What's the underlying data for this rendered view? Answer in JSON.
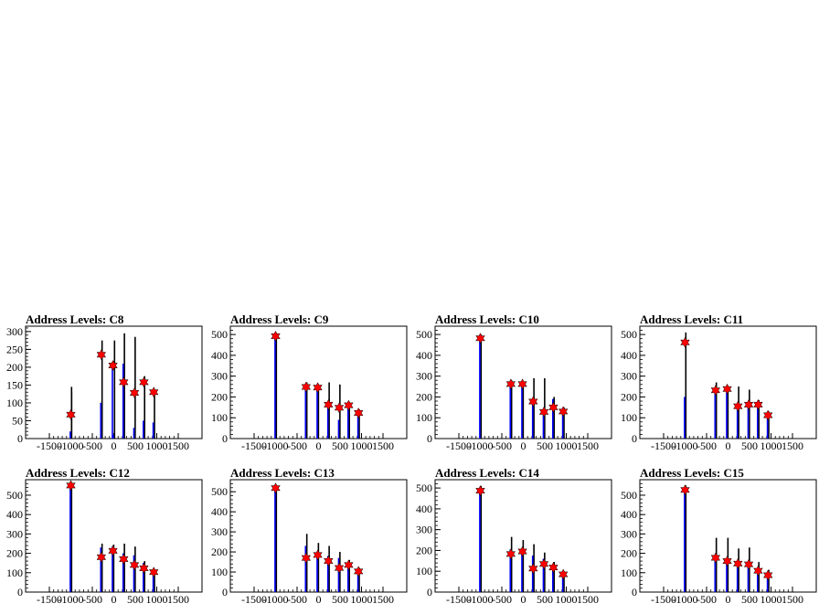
{
  "chart_data": [
    {
      "type": "histogram",
      "title": "Address Levels: C8",
      "xlim": [
        -1500,
        1500
      ],
      "ylim": [
        0,
        315
      ],
      "xticks": [
        -1500,
        -1000,
        -500,
        0,
        500,
        1000,
        1500
      ],
      "yticks": [
        0,
        50,
        100,
        150,
        200,
        250,
        300
      ],
      "series": [
        {
          "color": "#000000",
          "x": [
            -1000,
            -1000,
            -290,
            -290,
            0,
            230,
            480,
            700,
            930
          ],
          "values": [
            145,
            130,
            275,
            105,
            275,
            295,
            285,
            175,
            135
          ]
        },
        {
          "color": "#0000ff",
          "x": [
            -1000,
            -290,
            -20,
            0,
            230,
            480,
            700,
            930
          ],
          "values": [
            20,
            100,
            200,
            10,
            210,
            30,
            50,
            45
          ]
        }
      ],
      "peaks": {
        "x": [
          -1000,
          -290,
          -20,
          230,
          480,
          700,
          930
        ],
        "values": [
          67,
          235,
          205,
          158,
          128,
          158,
          130
        ]
      }
    },
    {
      "type": "histogram",
      "title": "Address Levels: C9",
      "xlim": [
        -1500,
        1500
      ],
      "ylim": [
        0,
        540
      ],
      "xticks": [
        -1500,
        -1000,
        -500,
        0,
        500,
        1000,
        1500
      ],
      "yticks": [
        0,
        100,
        200,
        300,
        400,
        500
      ],
      "series": [
        {
          "color": "#000000",
          "x": [
            -1000,
            -290,
            -20,
            230,
            480,
            700,
            930
          ],
          "values": [
            500,
            270,
            260,
            270,
            260,
            175,
            140
          ]
        },
        {
          "color": "#0000ff",
          "x": [
            -1000,
            -290,
            -20,
            230,
            480,
            700,
            930
          ],
          "values": [
            495,
            250,
            250,
            160,
            90,
            150,
            120
          ]
        }
      ],
      "peaks": {
        "x": [
          -1000,
          -290,
          -20,
          230,
          480,
          700,
          930
        ],
        "values": [
          492,
          248,
          245,
          163,
          148,
          160,
          123
        ]
      }
    },
    {
      "type": "histogram",
      "title": "Address Levels: C10",
      "xlim": [
        -1500,
        1500
      ],
      "ylim": [
        0,
        540
      ],
      "xticks": [
        -1500,
        -1000,
        -500,
        0,
        500,
        1000,
        1500
      ],
      "yticks": [
        0,
        100,
        200,
        300,
        400,
        500
      ],
      "series": [
        {
          "color": "#000000",
          "x": [
            -1000,
            -290,
            -20,
            230,
            480,
            700,
            930
          ],
          "values": [
            500,
            280,
            270,
            290,
            290,
            200,
            150
          ]
        },
        {
          "color": "#0000ff",
          "x": [
            -1000,
            -290,
            -20,
            230,
            480,
            700,
            930
          ],
          "values": [
            485,
            260,
            260,
            190,
            130,
            190,
            135
          ]
        }
      ],
      "peaks": {
        "x": [
          -1000,
          -290,
          -20,
          230,
          480,
          700,
          930
        ],
        "values": [
          482,
          262,
          262,
          178,
          128,
          150,
          130
        ]
      }
    },
    {
      "type": "histogram",
      "title": "Address Levels: C11",
      "xlim": [
        -1500,
        1500
      ],
      "ylim": [
        0,
        540
      ],
      "xticks": [
        -1500,
        -1000,
        -500,
        0,
        500,
        1000,
        1500
      ],
      "yticks": [
        0,
        100,
        200,
        300,
        400,
        500
      ],
      "series": [
        {
          "color": "#000000",
          "x": [
            -1000,
            -290,
            -20,
            230,
            480,
            700,
            930
          ],
          "values": [
            510,
            270,
            250,
            250,
            235,
            185,
            130
          ]
        },
        {
          "color": "#0000ff",
          "x": [
            -1000,
            -290,
            -20,
            230,
            480,
            700,
            930
          ],
          "values": [
            200,
            240,
            240,
            170,
            160,
            160,
            110
          ]
        }
      ],
      "peaks": {
        "x": [
          -1000,
          -290,
          -20,
          230,
          480,
          700,
          930
        ],
        "values": [
          462,
          232,
          238,
          155,
          163,
          163,
          112
        ]
      }
    },
    {
      "type": "histogram",
      "title": "Address Levels: C12",
      "xlim": [
        -1500,
        1500
      ],
      "ylim": [
        0,
        580
      ],
      "xticks": [
        -1500,
        -1000,
        -500,
        0,
        500,
        1000,
        1500
      ],
      "yticks": [
        0,
        100,
        200,
        300,
        400,
        500
      ],
      "series": [
        {
          "color": "#000000",
          "x": [
            -1000,
            -290,
            -20,
            230,
            480,
            700,
            930
          ],
          "values": [
            560,
            250,
            245,
            250,
            235,
            160,
            115
          ]
        },
        {
          "color": "#0000ff",
          "x": [
            -1000,
            -290,
            -20,
            230,
            480,
            700,
            930
          ],
          "values": [
            555,
            230,
            235,
            200,
            190,
            150,
            105
          ]
        }
      ],
      "peaks": {
        "x": [
          -1000,
          -290,
          -20,
          230,
          480,
          700,
          930
        ],
        "values": [
          550,
          180,
          213,
          170,
          140,
          123,
          103
        ]
      }
    },
    {
      "type": "histogram",
      "title": "Address Levels: C13",
      "xlim": [
        -1500,
        1500
      ],
      "ylim": [
        0,
        560
      ],
      "xticks": [
        -1500,
        -1000,
        -500,
        0,
        500,
        1000,
        1500
      ],
      "yticks": [
        0,
        100,
        200,
        300,
        400,
        500
      ],
      "series": [
        {
          "color": "#000000",
          "x": [
            -1000,
            -290,
            -20,
            230,
            480,
            700,
            930
          ],
          "values": [
            525,
            290,
            245,
            230,
            200,
            160,
            120
          ]
        },
        {
          "color": "#0000ff",
          "x": [
            -1000,
            -290,
            -20,
            230,
            480,
            700,
            930
          ],
          "values": [
            520,
            230,
            190,
            180,
            170,
            140,
            110
          ]
        }
      ],
      "peaks": {
        "x": [
          -1000,
          -290,
          -20,
          230,
          480,
          700,
          930
        ],
        "values": [
          518,
          170,
          185,
          155,
          120,
          135,
          103
        ]
      }
    },
    {
      "type": "histogram",
      "title": "Address Levels: C14",
      "xlim": [
        -1500,
        1500
      ],
      "ylim": [
        0,
        540
      ],
      "xticks": [
        -1500,
        -1000,
        -500,
        0,
        500,
        1000,
        1500
      ],
      "yticks": [
        0,
        100,
        200,
        300,
        400,
        500
      ],
      "series": [
        {
          "color": "#000000",
          "x": [
            -1000,
            -290,
            -20,
            230,
            480,
            700,
            930
          ],
          "values": [
            510,
            265,
            250,
            230,
            190,
            145,
            100
          ]
        },
        {
          "color": "#0000ff",
          "x": [
            -1000,
            -290,
            -20,
            230,
            480,
            700,
            930
          ],
          "values": [
            500,
            205,
            200,
            175,
            160,
            120,
            95
          ]
        }
      ],
      "peaks": {
        "x": [
          -1000,
          -290,
          -20,
          230,
          480,
          700,
          930
        ],
        "values": [
          487,
          183,
          195,
          113,
          135,
          118,
          85
        ]
      }
    },
    {
      "type": "histogram",
      "title": "Address Levels: C15",
      "xlim": [
        -1500,
        1500
      ],
      "ylim": [
        0,
        580
      ],
      "xticks": [
        -1500,
        -1000,
        -500,
        0,
        500,
        1000,
        1500
      ],
      "yticks": [
        0,
        100,
        200,
        300,
        400,
        500
      ],
      "series": [
        {
          "color": "#000000",
          "x": [
            -1000,
            -290,
            -20,
            230,
            480,
            700,
            930
          ],
          "values": [
            550,
            280,
            280,
            225,
            230,
            155,
            115
          ]
        },
        {
          "color": "#0000ff",
          "x": [
            -1000,
            -290,
            -20,
            230,
            480,
            700,
            930
          ],
          "values": [
            540,
            180,
            170,
            160,
            150,
            120,
            95
          ]
        }
      ],
      "peaks": {
        "x": [
          -1000,
          -290,
          -20,
          230,
          480,
          700,
          930
        ],
        "values": [
          527,
          177,
          160,
          147,
          143,
          110,
          87
        ]
      }
    }
  ]
}
